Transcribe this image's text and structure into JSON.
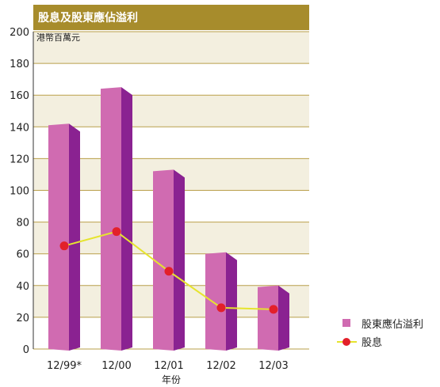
{
  "chart_data": {
    "type": "bar",
    "title": "股息及股東應佔溢利",
    "subtitle": "港幣百萬元",
    "xlabel": "年份",
    "ylabel": "",
    "categories": [
      "12/99*",
      "12/00",
      "12/01",
      "12/02",
      "12/03"
    ],
    "ylim": [
      0,
      200
    ],
    "yticks": [
      0,
      20,
      40,
      60,
      80,
      100,
      120,
      140,
      160,
      180,
      200
    ],
    "series": [
      {
        "name": "股東應佔溢利",
        "kind": "bar",
        "values": [
          142,
          165,
          113,
          61,
          40
        ]
      },
      {
        "name": "股息",
        "kind": "line",
        "values": [
          65,
          74,
          49,
          26,
          25
        ]
      }
    ],
    "grid": true,
    "legend": "right",
    "colors": {
      "header": "#a78c2c",
      "band": "#f3efdf",
      "gridline": "#b99f4a",
      "bar_front": "#d06bb1",
      "bar_side": "#8a2291",
      "line": "#e6e42e",
      "marker": "#e3202a"
    }
  }
}
